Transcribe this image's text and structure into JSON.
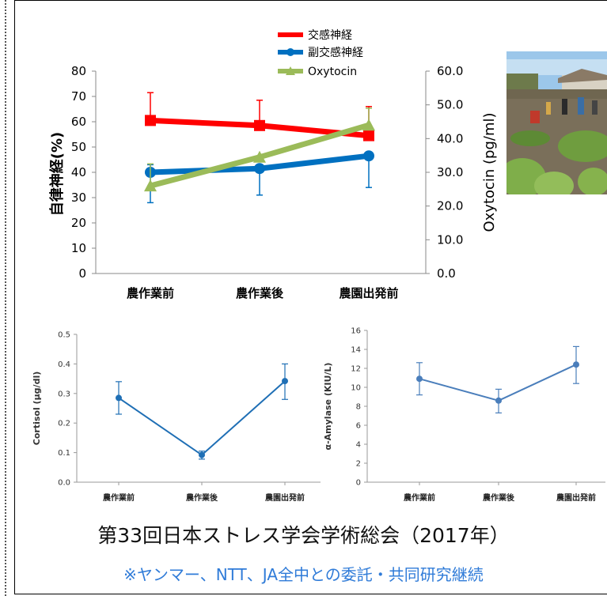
{
  "chart_data": [
    {
      "type": "line",
      "title": "",
      "categories": [
        "農作業前",
        "農作業後",
        "農園出発前"
      ],
      "ylabel": "自律神経(%)",
      "ylim": [
        0,
        80
      ],
      "yticks": [
        "0",
        "10",
        "20",
        "30",
        "40",
        "50",
        "60",
        "70",
        "80"
      ],
      "y2label": "Oxytocin (pg/ml)",
      "y2lim": [
        0,
        60
      ],
      "y2ticks": [
        "0.0",
        "10.0",
        "20.0",
        "30.0",
        "40.0",
        "50.0",
        "60.0"
      ],
      "legend_position": "top",
      "series": [
        {
          "name": "交感神経",
          "color": "#ff0000",
          "marker": "square",
          "axis": "left",
          "values": [
            60.5,
            58.5,
            54.5
          ],
          "err_upper": [
            71.5,
            68.5,
            66.0
          ],
          "err_lower": [
            60.5,
            58.5,
            54.5
          ]
        },
        {
          "name": "副交感神経",
          "color": "#0070c0",
          "marker": "circle",
          "axis": "left",
          "values": [
            40.0,
            41.5,
            46.5
          ],
          "err_upper": [
            43.0,
            41.5,
            46.5
          ],
          "err_lower": [
            28.0,
            31.0,
            34.0
          ]
        },
        {
          "name": "Oxytocin",
          "color": "#9bbb59",
          "marker": "triangle",
          "axis": "right",
          "values": [
            26.0,
            34.5,
            44.0
          ],
          "err_upper": [
            32.5,
            34.5,
            49.0
          ],
          "err_lower": [
            26.0,
            34.5,
            44.0
          ]
        }
      ]
    },
    {
      "type": "line",
      "categories": [
        "農作業前",
        "農作業後",
        "農園出発前"
      ],
      "ylabel": "Cortisol (μg/dl)",
      "ylim": [
        0,
        0.5
      ],
      "yticks": [
        "0.0",
        "0.1",
        "0.2",
        "0.3",
        "0.4",
        "0.5"
      ],
      "series": [
        {
          "color": "#1f6fb5",
          "values": [
            0.285,
            0.092,
            0.342
          ],
          "err_upper": [
            0.34,
            0.105,
            0.4
          ],
          "err_lower": [
            0.23,
            0.078,
            0.28
          ]
        }
      ]
    },
    {
      "type": "line",
      "categories": [
        "農作業前",
        "農作業後",
        "農園出発前"
      ],
      "ylabel": "α-Amylase (KIU/L)",
      "ylim": [
        0,
        16
      ],
      "yticks": [
        "0",
        "2",
        "4",
        "6",
        "8",
        "10",
        "12",
        "14",
        "16"
      ],
      "series": [
        {
          "color": "#4a7ebb",
          "values": [
            10.9,
            8.6,
            12.4
          ],
          "err_upper": [
            12.6,
            9.8,
            14.3
          ],
          "err_lower": [
            9.2,
            7.3,
            10.4
          ]
        }
      ]
    }
  ],
  "footer": {
    "title": "第33回日本ストレス学会学術総会（2017年）",
    "note": "※ヤンマー、NTT、JA全中との委託・共同研究継続"
  },
  "photo": {
    "subject": "farm field with people harvesting vegetables"
  }
}
